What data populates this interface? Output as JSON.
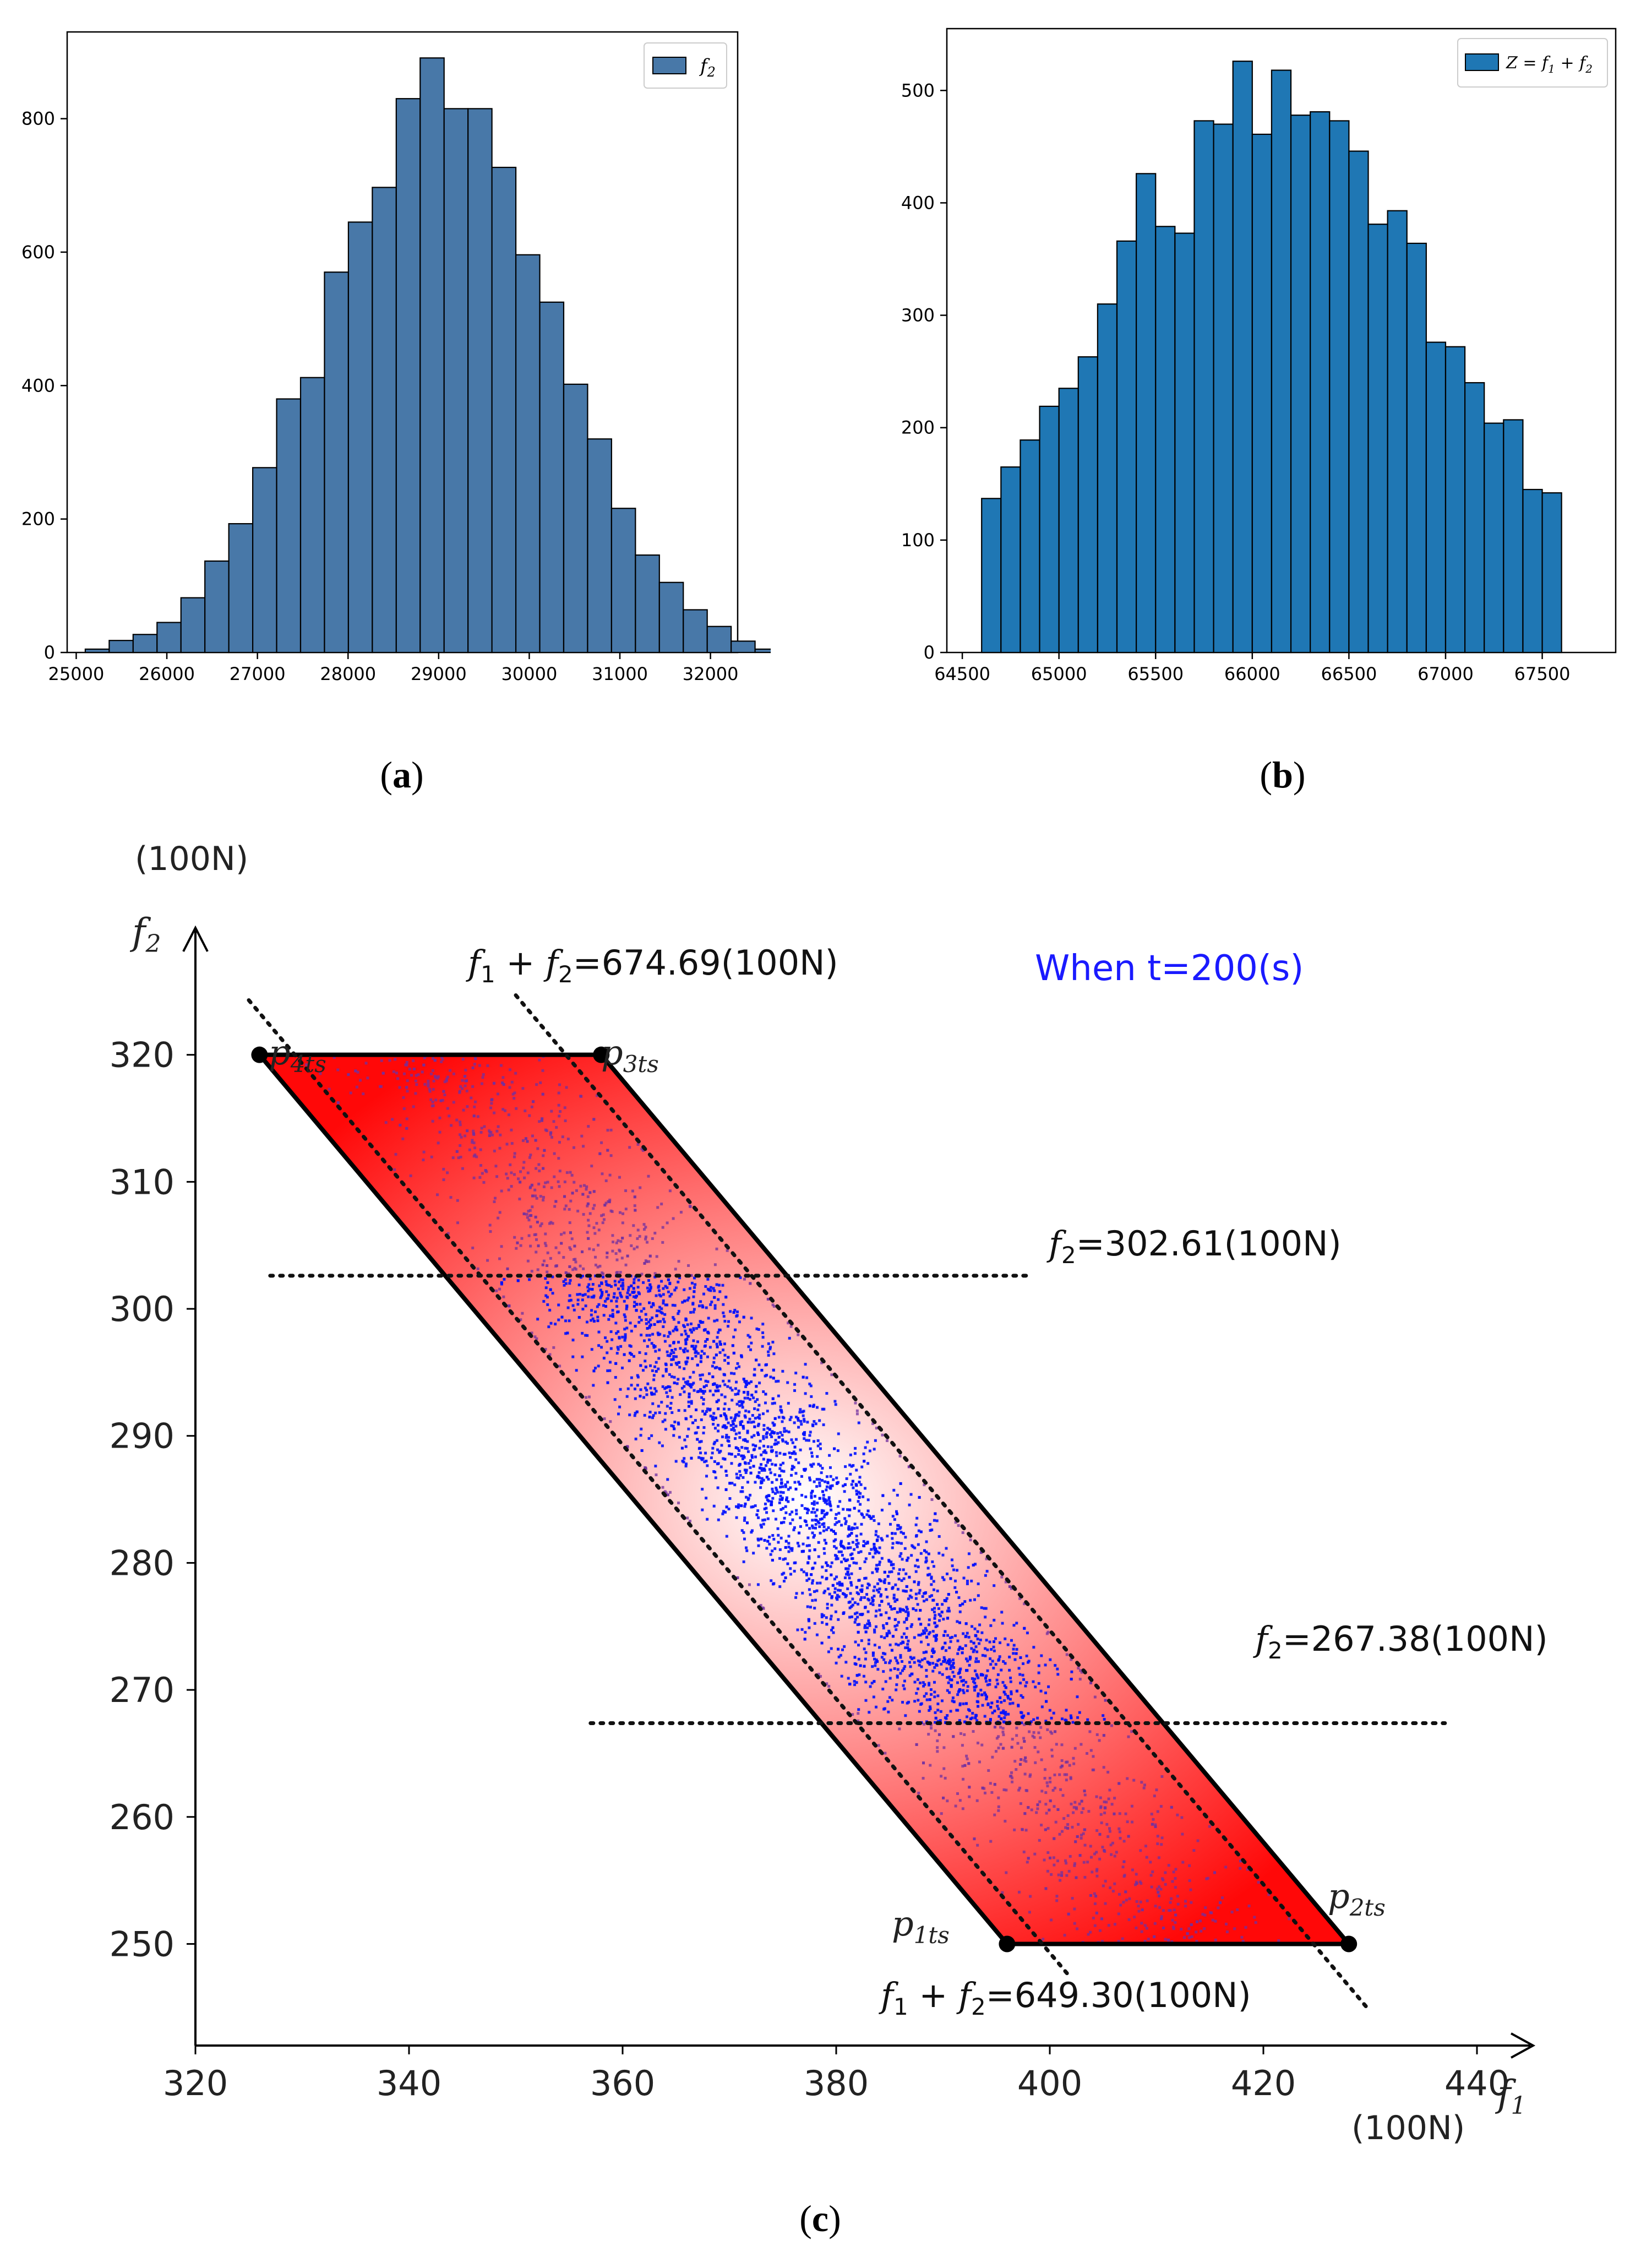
{
  "captions": {
    "a": "a",
    "b": "b",
    "c": "c"
  },
  "chart_data": [
    {
      "type": "bar",
      "id": "a",
      "x_start": 25100,
      "bin_width": 264,
      "values": [
        5,
        18,
        27,
        45,
        82,
        137,
        193,
        277,
        380,
        412,
        570,
        645,
        697,
        830,
        891,
        815,
        815,
        727,
        596,
        525,
        402,
        320,
        216,
        146,
        105,
        64,
        39,
        17,
        5
      ],
      "xlim": [
        24900,
        32300
      ],
      "ylim": [
        0,
        930
      ],
      "xticks": [
        25000,
        26000,
        27000,
        28000,
        29000,
        30000,
        31000,
        32000
      ],
      "yticks": [
        0,
        200,
        400,
        600,
        800
      ],
      "legend": {
        "label": "f",
        "sub": "2",
        "placement": "top-right"
      },
      "color": "#4878a8"
    },
    {
      "type": "bar",
      "id": "b",
      "x_start": 64600,
      "bin_width": 100,
      "values": [
        137,
        165,
        189,
        219,
        235,
        263,
        310,
        366,
        426,
        379,
        373,
        473,
        470,
        526,
        461,
        518,
        478,
        481,
        473,
        446,
        381,
        393,
        364,
        276,
        272,
        240,
        204,
        207,
        145,
        142
      ],
      "xlim": [
        64420,
        67880
      ],
      "ylim": [
        0,
        555
      ],
      "xticks": [
        64500,
        65000,
        65500,
        66000,
        66500,
        67000,
        67500
      ],
      "yticks": [
        0,
        100,
        200,
        300,
        400,
        500
      ],
      "legend": {
        "label": "Z = f1 + f2",
        "placement": "top-right"
      },
      "color": "#1f77b4"
    },
    {
      "type": "scatter",
      "id": "c",
      "xlim": [
        320,
        445
      ],
      "ylim": [
        242,
        330
      ],
      "xticks": [
        320,
        340,
        360,
        380,
        400,
        420,
        440
      ],
      "yticks": [
        250,
        260,
        270,
        280,
        290,
        300,
        310,
        320
      ],
      "x_unit": "(100N)",
      "y_unit": "(100N)",
      "title": "When t=200(s)",
      "polygon": [
        {
          "name": "p4ts",
          "x": 326,
          "y": 320
        },
        {
          "name": "p3ts",
          "x": 358,
          "y": 320
        },
        {
          "name": "p2ts",
          "x": 428,
          "y": 250
        },
        {
          "name": "p1ts",
          "x": 396,
          "y": 250
        }
      ],
      "point_labels": [
        "p",
        "4ts",
        "p",
        "3ts",
        "p",
        "2ts",
        "p",
        "1ts"
      ],
      "lines": [
        {
          "label": "=302.61(100N)",
          "y": 302.61,
          "x_range": [
            327,
            398
          ]
        },
        {
          "label": "=267.38(100N)",
          "y": 267.38,
          "x_range": [
            357,
            437
          ]
        },
        {
          "label": "=674.69(100N)",
          "sum": 674.69,
          "x_range": [
            350,
            430
          ]
        },
        {
          "label": "=649.30(100N)",
          "sum": 649.3,
          "x_range": [
            325,
            402
          ]
        }
      ],
      "scatter": {
        "count": 4200,
        "mean_f1": 384.5,
        "mean_sum": 662,
        "sd_sum": 5.2,
        "f2_range": [
          250,
          320
        ]
      },
      "colors": {
        "fill": "#ff2020",
        "inner": "#0010ff",
        "outer": "#7030a0",
        "title": "#1a1aff"
      }
    }
  ]
}
